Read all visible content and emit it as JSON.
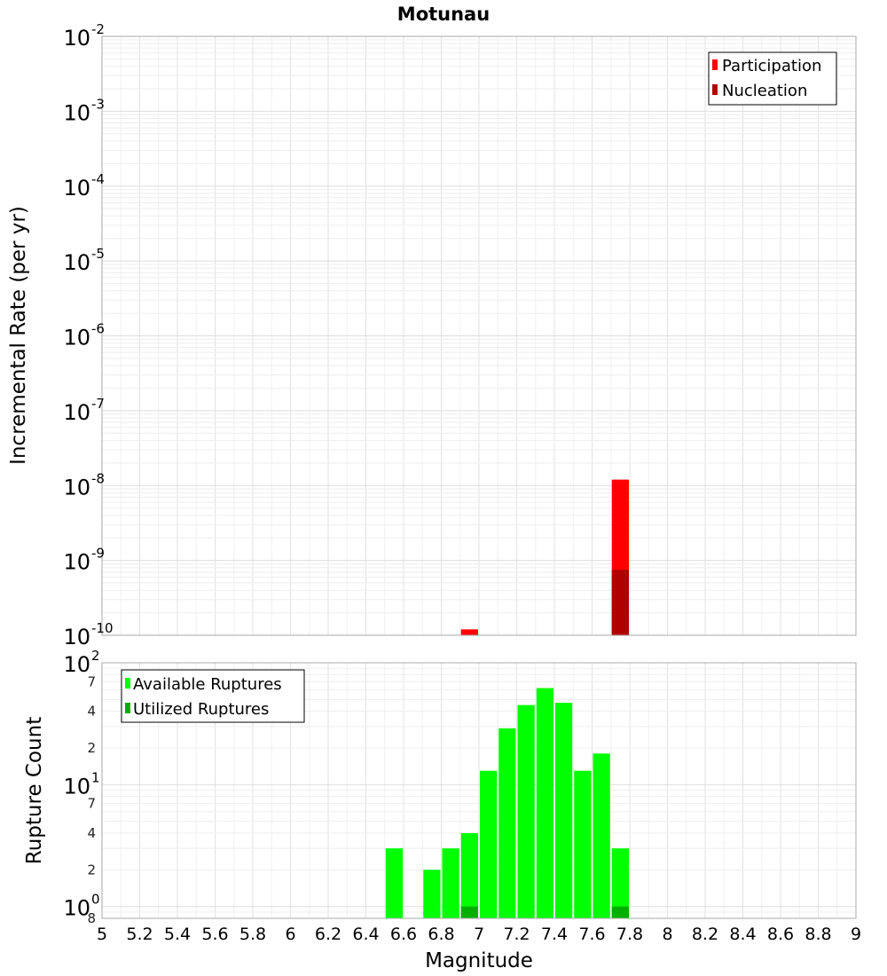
{
  "chart_data": [
    {
      "type": "bar",
      "title": "Motunau",
      "ylabel": "Incremental Rate (per yr)",
      "xlim": [
        5,
        9
      ],
      "ylim": [
        1e-10,
        0.01
      ],
      "yscale": "log",
      "y_tick_labels": [
        {
          "base": "10",
          "exp": "-2"
        },
        {
          "base": "10",
          "exp": "-3"
        },
        {
          "base": "10",
          "exp": "-4"
        },
        {
          "base": "10",
          "exp": "-5"
        },
        {
          "base": "10",
          "exp": "-6"
        },
        {
          "base": "10",
          "exp": "-7"
        },
        {
          "base": "10",
          "exp": "-8"
        },
        {
          "base": "10",
          "exp": "-9"
        },
        {
          "base": "10",
          "exp": "-10"
        }
      ],
      "grid": true,
      "legend": {
        "placement": "top-right"
      },
      "series": [
        {
          "name": "Participation",
          "color": "#ff0000",
          "points": [
            {
              "x": 6.95,
              "y": 1.2e-10
            },
            {
              "x": 7.75,
              "y": 1.2e-08
            }
          ]
        },
        {
          "name": "Nucleation",
          "color": "#b00000",
          "points": [
            {
              "x": 7.75,
              "y": 7.5e-10
            }
          ]
        }
      ]
    },
    {
      "type": "bar",
      "ylabel": "Rupture Count",
      "xlabel": "Magnitude",
      "xlim": [
        5,
        9
      ],
      "ylim": [
        0.8,
        100
      ],
      "yscale": "log",
      "x_tick_labels": [
        "5",
        "5.2",
        "5.4",
        "5.6",
        "5.8",
        "6",
        "6.2",
        "6.4",
        "6.6",
        "6.8",
        "7",
        "7.2",
        "7.4",
        "7.6",
        "7.8",
        "8",
        "8.2",
        "8.4",
        "8.6",
        "8.8",
        "9"
      ],
      "y_major_labels": [
        {
          "base": "10",
          "exp": "2"
        },
        {
          "base": "10",
          "exp": "1"
        },
        {
          "base": "10",
          "exp": "0"
        }
      ],
      "y_minor_labels": [
        {
          "value": 70,
          "label": "7"
        },
        {
          "value": 40,
          "label": "4"
        },
        {
          "value": 20,
          "label": "2"
        },
        {
          "value": 7,
          "label": "7"
        },
        {
          "value": 4,
          "label": "4"
        },
        {
          "value": 2,
          "label": "2"
        },
        {
          "value": 0.8,
          "label": "8"
        }
      ],
      "grid": true,
      "legend": {
        "placement": "top-left"
      },
      "series": [
        {
          "name": "Available Ruptures",
          "color": "#00ff00",
          "points": [
            {
              "x": 6.55,
              "y": 3
            },
            {
              "x": 6.75,
              "y": 2
            },
            {
              "x": 6.85,
              "y": 3
            },
            {
              "x": 6.95,
              "y": 4
            },
            {
              "x": 7.05,
              "y": 13
            },
            {
              "x": 7.15,
              "y": 29
            },
            {
              "x": 7.25,
              "y": 45
            },
            {
              "x": 7.35,
              "y": 62
            },
            {
              "x": 7.45,
              "y": 47
            },
            {
              "x": 7.55,
              "y": 13
            },
            {
              "x": 7.65,
              "y": 18
            },
            {
              "x": 7.75,
              "y": 3
            }
          ]
        },
        {
          "name": "Utilized Ruptures",
          "color": "#00b000",
          "points": [
            {
              "x": 6.95,
              "y": 1
            },
            {
              "x": 7.75,
              "y": 1
            }
          ]
        }
      ]
    }
  ]
}
